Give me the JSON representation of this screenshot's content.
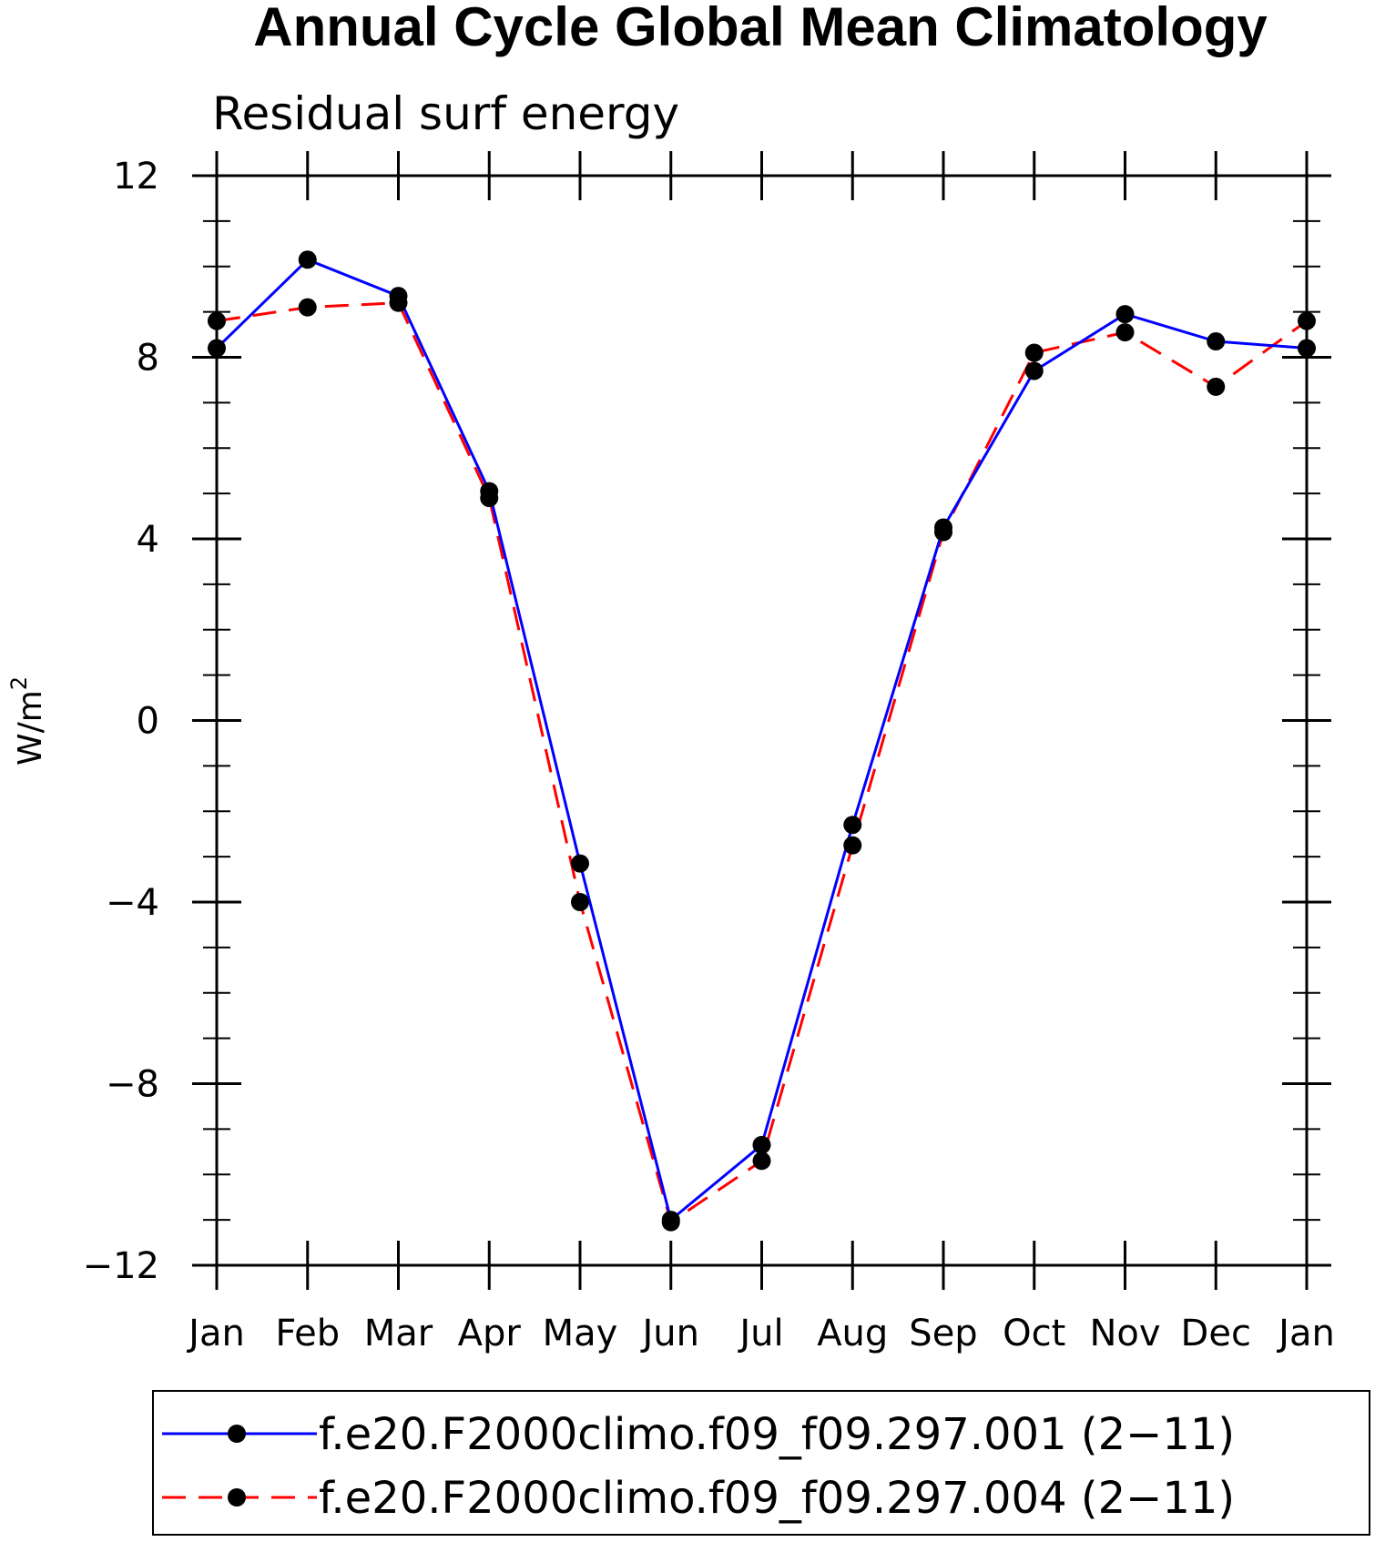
{
  "chart_data": {
    "type": "line",
    "title": "Annual Cycle Global Mean Climatology",
    "subtitle": "Residual surf energy",
    "ylabel": "W/m",
    "ylabel_superscript": "2",
    "categories": [
      "Jan",
      "Feb",
      "Mar",
      "Apr",
      "May",
      "Jun",
      "Jul",
      "Aug",
      "Sep",
      "Oct",
      "Nov",
      "Dec",
      "Jan"
    ],
    "ylim": [
      -12,
      12
    ],
    "yticks": [
      12,
      8,
      4,
      0,
      -4,
      -8,
      -12
    ],
    "ytick_labels": [
      "12",
      "8",
      "4",
      "0",
      "−4",
      "−8",
      "−12"
    ],
    "grid": false,
    "legend_position": "bottom",
    "series": [
      {
        "name": "f.e20.F2000climo.f09_f09.297.001 (2−11)",
        "color": "#0000ff",
        "dash": "solid",
        "marker": "filled-circle",
        "values": [
          8.2,
          10.15,
          9.35,
          5.05,
          -3.15,
          -11.0,
          -9.35,
          -2.3,
          4.25,
          7.7,
          8.95,
          8.35,
          8.2
        ]
      },
      {
        "name": "f.e20.F2000climo.f09_f09.297.004 (2−11)",
        "color": "#ff0000",
        "dash": "dashed",
        "marker": "filled-circle",
        "values": [
          8.8,
          9.1,
          9.2,
          4.9,
          -4.0,
          -11.05,
          -9.7,
          -2.75,
          4.15,
          8.1,
          8.55,
          7.35,
          8.8
        ]
      }
    ]
  }
}
